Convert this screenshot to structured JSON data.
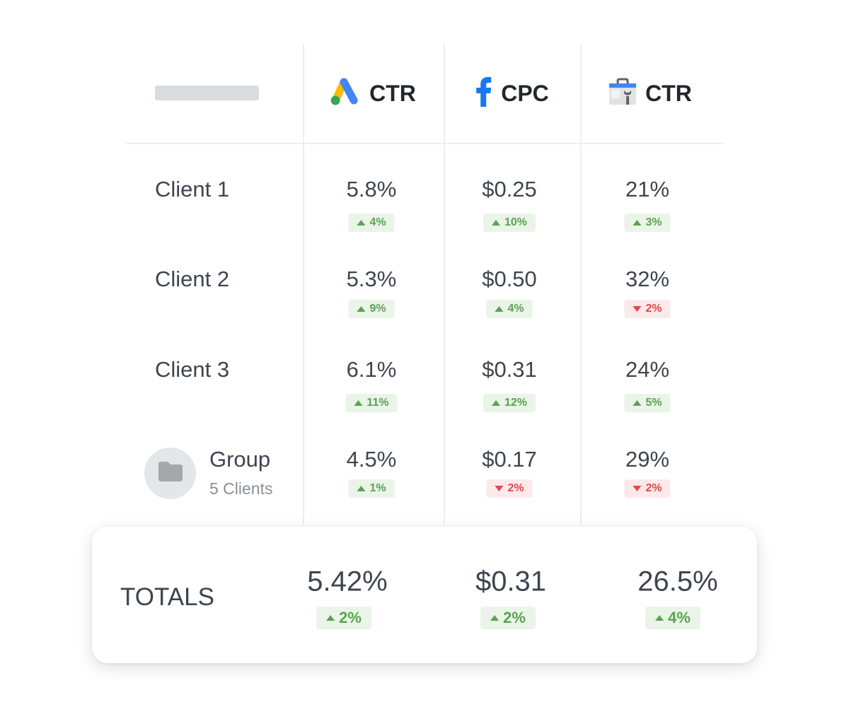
{
  "header": {
    "columns": [
      {
        "icon": "google-ads-icon",
        "label": "CTR"
      },
      {
        "icon": "facebook-icon",
        "label": "CPC"
      },
      {
        "icon": "search-console-icon",
        "label": "CTR"
      }
    ]
  },
  "rows": [
    {
      "label": "Client 1",
      "cells": [
        {
          "value": "5.8%",
          "change": "4%",
          "direction": "up"
        },
        {
          "value": "$0.25",
          "change": "10%",
          "direction": "up"
        },
        {
          "value": "21%",
          "change": "3%",
          "direction": "up"
        }
      ]
    },
    {
      "label": "Client 2",
      "cells": [
        {
          "value": "5.3%",
          "change": "9%",
          "direction": "up"
        },
        {
          "value": "$0.50",
          "change": "4%",
          "direction": "up"
        },
        {
          "value": "32%",
          "change": "2%",
          "direction": "down"
        }
      ]
    },
    {
      "label": "Client 3",
      "cells": [
        {
          "value": "6.1%",
          "change": "11%",
          "direction": "up"
        },
        {
          "value": "$0.31",
          "change": "12%",
          "direction": "up"
        },
        {
          "value": "24%",
          "change": "5%",
          "direction": "up"
        }
      ]
    },
    {
      "label": "Group",
      "sublabel": "5 Clients",
      "icon": "folder-icon",
      "cells": [
        {
          "value": "4.5%",
          "change": "1%",
          "direction": "up"
        },
        {
          "value": "$0.17",
          "change": "2%",
          "direction": "down"
        },
        {
          "value": "29%",
          "change": "2%",
          "direction": "down"
        }
      ]
    }
  ],
  "totals": {
    "label": "TOTALS",
    "cells": [
      {
        "value": "5.42%",
        "change": "2%",
        "direction": "up"
      },
      {
        "value": "$0.31",
        "change": "2%",
        "direction": "up"
      },
      {
        "value": "26.5%",
        "change": "4%",
        "direction": "up"
      }
    ]
  },
  "colors": {
    "up": "#5aa352",
    "down": "#e0474e",
    "text": "#3d4550"
  }
}
